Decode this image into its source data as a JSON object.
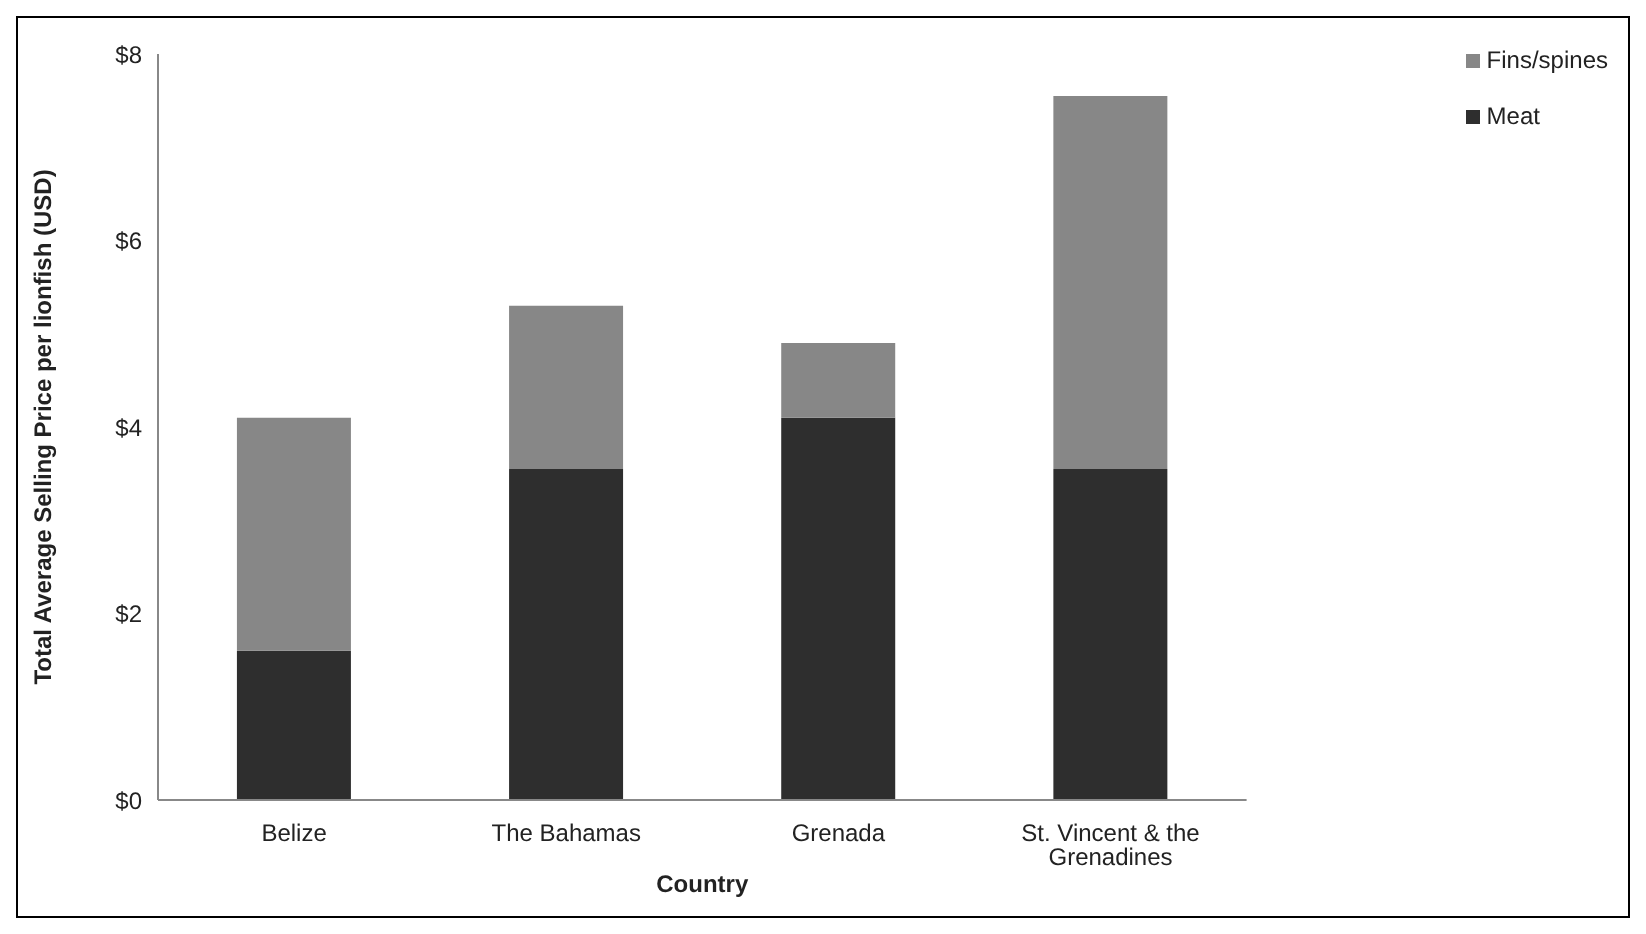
{
  "chart_data": {
    "type": "bar",
    "stacked": true,
    "xlabel": "Country",
    "ylabel": "Total Average Selling Price per lionfish (USD)",
    "categories": [
      "Belize",
      "The Bahamas",
      "Grenada",
      "St. Vincent & the Grenadines"
    ],
    "series": [
      {
        "name": "Meat",
        "color": "#2e2e2e",
        "values": [
          1.6,
          3.55,
          4.1,
          3.55
        ]
      },
      {
        "name": "Fins/spines",
        "color": "#878787",
        "values": [
          2.5,
          1.75,
          0.8,
          4.0
        ]
      }
    ],
    "ylim": [
      0,
      8
    ],
    "yticks": [
      {
        "value": 0,
        "label": "$0"
      },
      {
        "value": 2,
        "label": "$2"
      },
      {
        "value": 4,
        "label": "$4"
      },
      {
        "value": 6,
        "label": "$6"
      },
      {
        "value": 8,
        "label": "$8"
      }
    ],
    "grid": false,
    "legend": "top right"
  }
}
